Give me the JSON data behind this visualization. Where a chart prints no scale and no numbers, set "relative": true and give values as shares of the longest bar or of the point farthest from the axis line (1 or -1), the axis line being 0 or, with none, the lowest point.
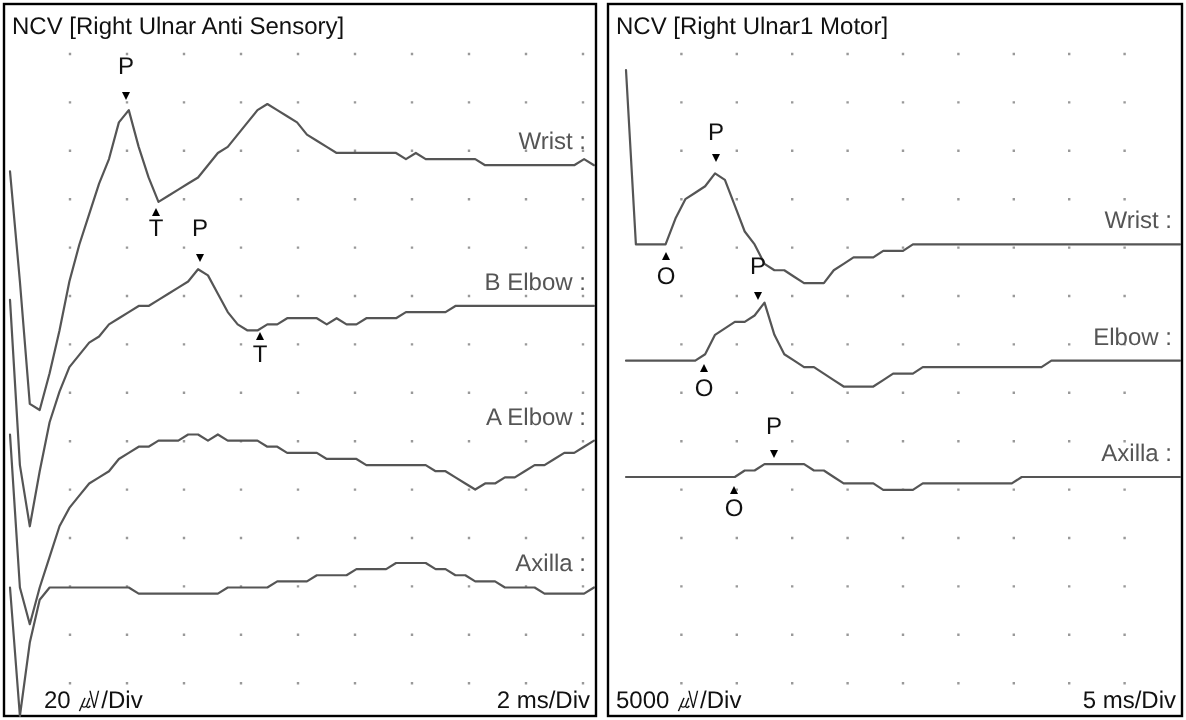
{
  "chart_data": [
    {
      "type": "line",
      "title": "NCV [Right Ulnar Anti Sensory]",
      "relative": true,
      "grid": true,
      "legend": "right",
      "categories": [
        null,
        null,
        null,
        null,
        null,
        null,
        null,
        null,
        null,
        null,
        null,
        null,
        null,
        null,
        null,
        null,
        null,
        null,
        null,
        null,
        null,
        null,
        null,
        null,
        null,
        null,
        null,
        null,
        null,
        null,
        null,
        null,
        null,
        null,
        null,
        null,
        null,
        null,
        null,
        null,
        null,
        null,
        null,
        null,
        null,
        null,
        null,
        null,
        null,
        null,
        null,
        null,
        null,
        null,
        null,
        null,
        null,
        null,
        null,
        null
      ],
      "series": [
        {
          "name": "Wrist :",
          "color": "#555555",
          "values": [
            0.89,
            0.71,
            0.51,
            0.5,
            0.56,
            0.63,
            0.71,
            0.77,
            0.82,
            0.87,
            0.91,
            0.97,
            0.99,
            0.93,
            0.88,
            0.84,
            0.85,
            0.86,
            0.87,
            0.88,
            0.9,
            0.92,
            0.93,
            0.95,
            0.97,
            0.99,
            1.0,
            0.99,
            0.98,
            0.97,
            0.95,
            0.94,
            0.93,
            0.92,
            0.92,
            0.92,
            0.92,
            0.92,
            0.92,
            0.92,
            0.91,
            0.92,
            0.91,
            0.91,
            0.91,
            0.91,
            0.91,
            0.91,
            0.9,
            0.9,
            0.9,
            0.9,
            0.9,
            0.9,
            0.9,
            0.9,
            0.9,
            0.9,
            0.91,
            0.9
          ]
        },
        {
          "name": "B Elbow :",
          "color": "#555555",
          "values": [
            0.68,
            0.41,
            0.31,
            0.4,
            0.48,
            0.53,
            0.57,
            0.59,
            0.61,
            0.62,
            0.64,
            0.65,
            0.66,
            0.67,
            0.67,
            0.68,
            0.69,
            0.7,
            0.71,
            0.73,
            0.72,
            0.69,
            0.66,
            0.64,
            0.63,
            0.63,
            0.64,
            0.64,
            0.65,
            0.65,
            0.65,
            0.65,
            0.64,
            0.65,
            0.64,
            0.64,
            0.65,
            0.65,
            0.65,
            0.65,
            0.66,
            0.66,
            0.66,
            0.66,
            0.66,
            0.67,
            0.67,
            0.67,
            0.67,
            0.67,
            0.67,
            0.67,
            0.67,
            0.67,
            0.67,
            0.67,
            0.67,
            0.67,
            0.67,
            0.67
          ]
        },
        {
          "name": "A Elbow :",
          "color": "#555555",
          "values": [
            0.46,
            0.21,
            0.15,
            0.21,
            0.26,
            0.31,
            0.34,
            0.36,
            0.38,
            0.39,
            0.4,
            0.42,
            0.43,
            0.44,
            0.44,
            0.45,
            0.45,
            0.45,
            0.46,
            0.46,
            0.45,
            0.46,
            0.45,
            0.45,
            0.45,
            0.45,
            0.44,
            0.44,
            0.43,
            0.43,
            0.43,
            0.43,
            0.42,
            0.42,
            0.42,
            0.42,
            0.41,
            0.41,
            0.41,
            0.41,
            0.41,
            0.41,
            0.41,
            0.4,
            0.4,
            0.39,
            0.38,
            0.37,
            0.38,
            0.38,
            0.39,
            0.39,
            0.4,
            0.41,
            0.41,
            0.42,
            0.43,
            0.43,
            0.44,
            0.45
          ]
        },
        {
          "name": "Axilla :",
          "color": "#555555",
          "values": [
            0.21,
            0.0,
            0.12,
            0.19,
            0.21,
            0.21,
            0.21,
            0.21,
            0.21,
            0.21,
            0.21,
            0.21,
            0.21,
            0.2,
            0.2,
            0.2,
            0.2,
            0.2,
            0.2,
            0.2,
            0.2,
            0.2,
            0.21,
            0.21,
            0.21,
            0.21,
            0.21,
            0.22,
            0.22,
            0.22,
            0.22,
            0.23,
            0.23,
            0.23,
            0.23,
            0.24,
            0.24,
            0.24,
            0.24,
            0.25,
            0.25,
            0.25,
            0.25,
            0.24,
            0.24,
            0.23,
            0.23,
            0.22,
            0.22,
            0.22,
            0.21,
            0.21,
            0.21,
            0.21,
            0.2,
            0.2,
            0.2,
            0.2,
            0.2,
            0.21
          ]
        }
      ],
      "annotations": [
        "P",
        "T",
        "P",
        "T",
        "20 ㎶/Div",
        "2 ms/Div"
      ]
    },
    {
      "type": "line",
      "title": "NCV [Right Ulnar1 Motor]",
      "relative": true,
      "grid": true,
      "legend": "right",
      "categories": [
        null,
        null,
        null,
        null,
        null,
        null,
        null,
        null,
        null,
        null,
        null,
        null,
        null,
        null,
        null,
        null,
        null,
        null,
        null,
        null,
        null,
        null,
        null,
        null,
        null,
        null,
        null,
        null,
        null,
        null,
        null,
        null,
        null,
        null,
        null,
        null,
        null,
        null,
        null,
        null,
        null,
        null,
        null,
        null,
        null,
        null,
        null,
        null,
        null,
        null,
        null,
        null,
        null,
        null,
        null,
        null,
        null
      ],
      "series": [
        {
          "name": "Wrist :",
          "color": "#555555",
          "values": [
            1.0,
            0.73,
            0.73,
            0.73,
            0.73,
            0.77,
            0.8,
            0.81,
            0.82,
            0.84,
            0.83,
            0.79,
            0.75,
            0.73,
            0.7,
            0.69,
            0.69,
            0.68,
            0.67,
            0.67,
            0.67,
            0.69,
            0.7,
            0.71,
            0.71,
            0.71,
            0.72,
            0.72,
            0.72,
            0.73,
            0.73,
            0.73,
            0.73,
            0.73,
            0.73,
            0.73,
            0.73,
            0.73,
            0.73,
            0.73,
            0.73,
            0.73,
            0.73,
            0.73,
            0.73,
            0.73,
            0.73,
            0.73,
            0.73,
            0.73,
            0.73,
            0.73,
            0.73,
            0.73,
            0.73,
            0.73,
            0.73
          ]
        },
        {
          "name": "Elbow :",
          "color": "#555555",
          "values": [
            0.55,
            0.55,
            0.55,
            0.55,
            0.55,
            0.55,
            0.55,
            0.55,
            0.56,
            0.59,
            0.6,
            0.61,
            0.61,
            0.62,
            0.64,
            0.59,
            0.56,
            0.55,
            0.54,
            0.54,
            0.53,
            0.52,
            0.51,
            0.51,
            0.51,
            0.51,
            0.52,
            0.53,
            0.53,
            0.53,
            0.54,
            0.54,
            0.54,
            0.54,
            0.54,
            0.54,
            0.54,
            0.54,
            0.54,
            0.54,
            0.54,
            0.54,
            0.54,
            0.55,
            0.55,
            0.55,
            0.55,
            0.55,
            0.55,
            0.55,
            0.55,
            0.55,
            0.55,
            0.55,
            0.55,
            0.55,
            0.55
          ]
        },
        {
          "name": "Axilla :",
          "color": "#555555",
          "values": [
            0.37,
            0.37,
            0.37,
            0.37,
            0.37,
            0.37,
            0.37,
            0.37,
            0.37,
            0.37,
            0.37,
            0.37,
            0.38,
            0.38,
            0.39,
            0.39,
            0.39,
            0.39,
            0.39,
            0.38,
            0.38,
            0.37,
            0.36,
            0.36,
            0.36,
            0.36,
            0.35,
            0.35,
            0.35,
            0.35,
            0.36,
            0.36,
            0.36,
            0.36,
            0.36,
            0.36,
            0.36,
            0.36,
            0.36,
            0.36,
            0.37,
            0.37,
            0.37,
            0.37,
            0.37,
            0.37,
            0.37,
            0.37,
            0.37,
            0.37,
            0.37,
            0.37,
            0.37,
            0.37,
            0.37,
            0.37,
            0.37
          ]
        }
      ],
      "annotations": [
        "P",
        "O",
        "P",
        "O",
        "P",
        "O",
        "5000 ㎶/Div",
        "5 ms/Div"
      ]
    }
  ]
}
